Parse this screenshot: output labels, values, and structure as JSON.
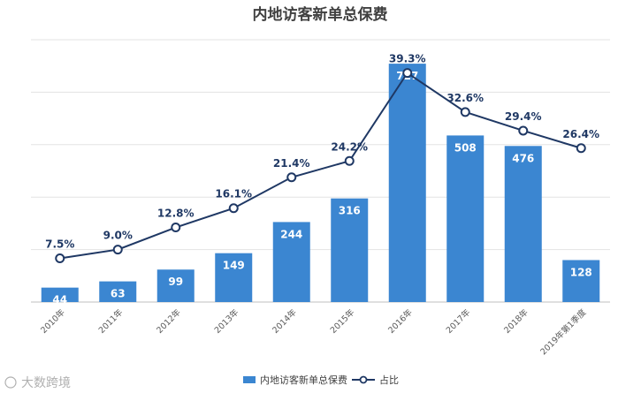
{
  "chart_data": {
    "type": "bar",
    "title": "内地访客新单总保费",
    "categories": [
      "2010年",
      "2011年",
      "2012年",
      "2013年",
      "2014年",
      "2015年",
      "2016年",
      "2017年",
      "2018年",
      "2019年第1季度"
    ],
    "series": [
      {
        "name": "内地访客新单总保费",
        "type": "bar",
        "color": "#3b86d1",
        "values": [
          44,
          63,
          99,
          149,
          244,
          316,
          727,
          508,
          476,
          128
        ]
      },
      {
        "name": "占比",
        "type": "line",
        "color": "#1f3864",
        "values": [
          7.5,
          9.0,
          12.8,
          16.1,
          21.4,
          24.2,
          39.3,
          32.6,
          29.4,
          26.4
        ],
        "labels": [
          "7.5%",
          "9.0%",
          "12.8%",
          "16.1%",
          "21.4%",
          "24.2%",
          "39.3%",
          "32.6%",
          "29.4%",
          "26.4%"
        ]
      }
    ],
    "ylim_bar": [
      0,
      800
    ],
    "ylim_line": [
      0,
      45
    ],
    "grid": true,
    "legend": "bottom"
  },
  "watermark": "大数跨境"
}
